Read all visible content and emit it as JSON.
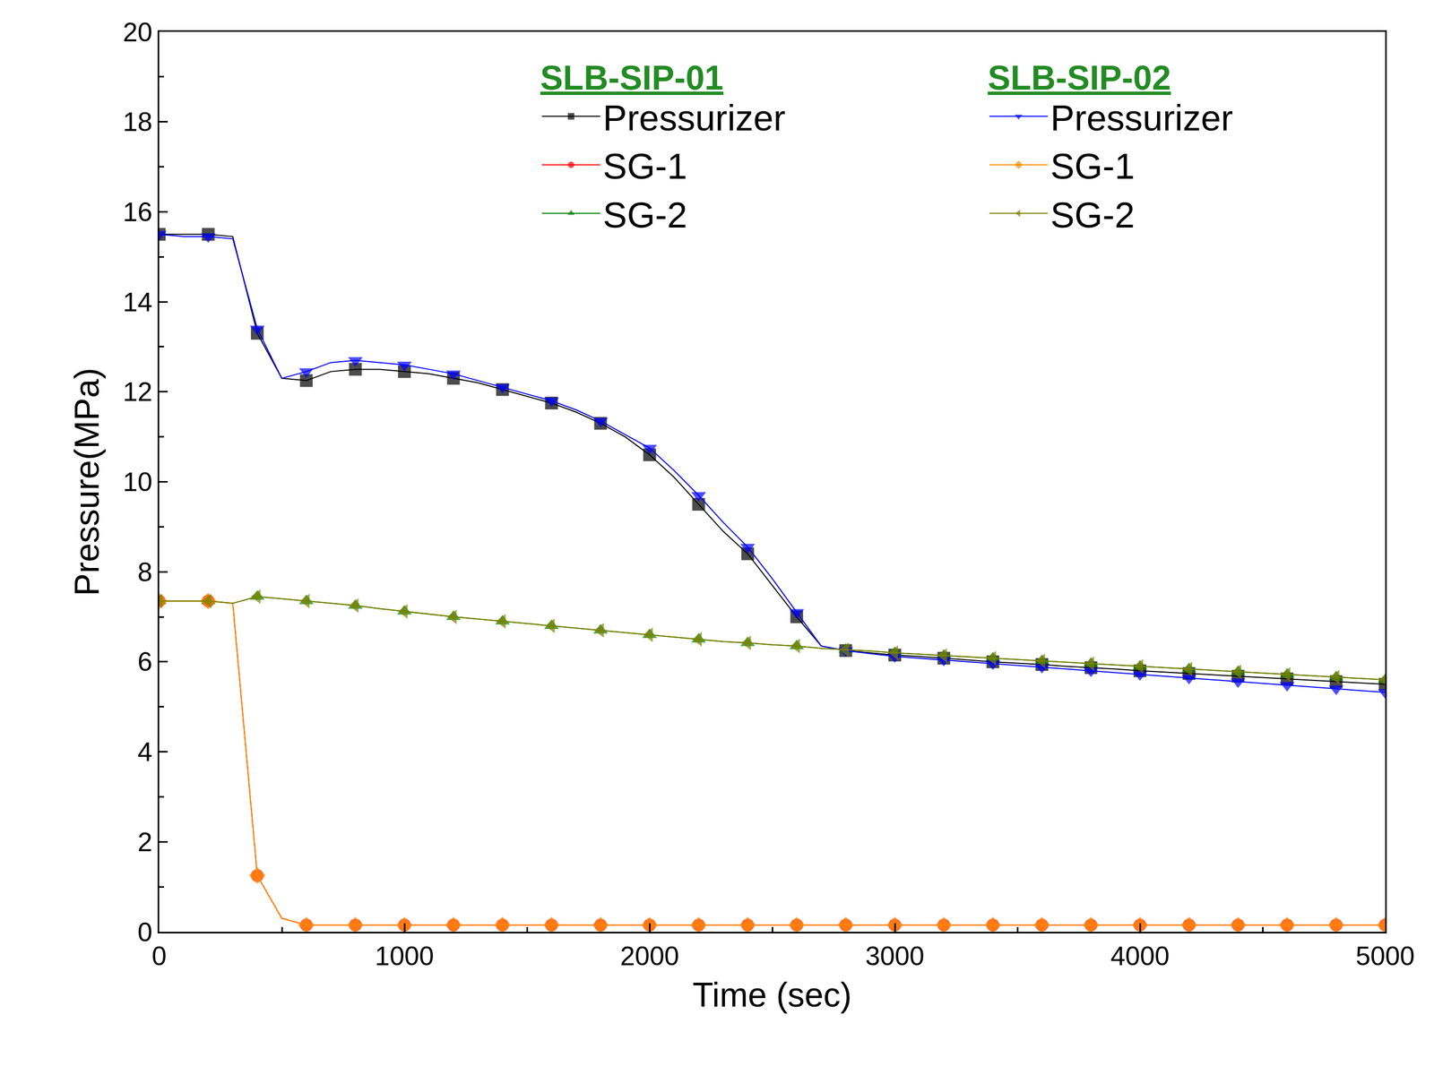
{
  "chart_data": {
    "type": "line",
    "x_label": "Time (sec)",
    "y_label": "Pressure(MPa)",
    "x": [
      0,
      100,
      200,
      300,
      400,
      500,
      600,
      700,
      800,
      900,
      1000,
      1100,
      1200,
      1300,
      1400,
      1500,
      1600,
      1700,
      1800,
      1900,
      2000,
      2100,
      2200,
      2300,
      2400,
      2500,
      2600,
      2700,
      2800,
      2900,
      3000,
      3100,
      3200,
      3300,
      3400,
      3500,
      3600,
      3700,
      3800,
      3900,
      4000,
      4100,
      4200,
      4300,
      4400,
      4500,
      4600,
      4700,
      4800,
      4900,
      5000
    ],
    "xlim": [
      0,
      5000
    ],
    "xticks": [
      0,
      1000,
      2000,
      3000,
      4000,
      5000
    ],
    "ylim": [
      0,
      20
    ],
    "yticks": [
      0,
      2,
      4,
      6,
      8,
      10,
      12,
      14,
      16,
      18,
      20
    ],
    "grid": false,
    "groups": [
      {
        "name": "SLB-SIP-01",
        "series": [
          {
            "name": "Pressurizer",
            "color": "#000000",
            "marker": "square",
            "values": [
              15.5,
              15.5,
              15.5,
              15.45,
              13.3,
              12.3,
              12.25,
              12.45,
              12.5,
              12.5,
              12.45,
              12.4,
              12.3,
              12.2,
              12.05,
              11.9,
              11.75,
              11.55,
              11.3,
              11.0,
              10.6,
              10.1,
              9.5,
              8.9,
              8.4,
              7.7,
              7.0,
              6.35,
              6.25,
              6.2,
              6.15,
              6.12,
              6.08,
              6.04,
              6.0,
              5.97,
              5.94,
              5.9,
              5.87,
              5.84,
              5.8,
              5.77,
              5.74,
              5.71,
              5.68,
              5.65,
              5.62,
              5.59,
              5.56,
              5.53,
              5.5
            ]
          },
          {
            "name": "SG-1",
            "color": "#ff0000",
            "marker": "circle",
            "values": [
              7.35,
              7.35,
              7.35,
              7.3,
              1.25,
              0.3,
              0.15,
              0.15,
              0.15,
              0.15,
              0.15,
              0.15,
              0.15,
              0.15,
              0.15,
              0.15,
              0.15,
              0.15,
              0.15,
              0.15,
              0.15,
              0.15,
              0.15,
              0.15,
              0.15,
              0.15,
              0.15,
              0.15,
              0.15,
              0.15,
              0.15,
              0.15,
              0.15,
              0.15,
              0.15,
              0.15,
              0.15,
              0.15,
              0.15,
              0.15,
              0.15,
              0.15,
              0.15,
              0.15,
              0.15,
              0.15,
              0.15,
              0.15,
              0.15,
              0.15,
              0.15
            ]
          },
          {
            "name": "SG-2",
            "color": "#008000",
            "marker": "triangle-up",
            "values": [
              7.35,
              7.35,
              7.35,
              7.3,
              7.45,
              7.4,
              7.35,
              7.3,
              7.25,
              7.18,
              7.12,
              7.06,
              7.0,
              6.95,
              6.9,
              6.85,
              6.8,
              6.75,
              6.7,
              6.65,
              6.6,
              6.55,
              6.5,
              6.45,
              6.42,
              6.38,
              6.35,
              6.3,
              6.27,
              6.24,
              6.2,
              6.17,
              6.14,
              6.11,
              6.08,
              6.05,
              6.02,
              5.99,
              5.96,
              5.93,
              5.9,
              5.87,
              5.84,
              5.81,
              5.78,
              5.75,
              5.72,
              5.69,
              5.66,
              5.63,
              5.6
            ]
          }
        ]
      },
      {
        "name": "SLB-SIP-02",
        "series": [
          {
            "name": "Pressurizer",
            "color": "#0000ff",
            "marker": "triangle-down",
            "values": [
              15.5,
              15.45,
              15.45,
              15.4,
              13.4,
              12.3,
              12.45,
              12.65,
              12.7,
              12.65,
              12.6,
              12.5,
              12.4,
              12.25,
              12.1,
              11.95,
              11.8,
              11.6,
              11.35,
              11.05,
              10.75,
              10.25,
              9.7,
              9.1,
              8.55,
              7.85,
              7.1,
              6.35,
              6.25,
              6.18,
              6.12,
              6.08,
              6.04,
              6.0,
              5.96,
              5.92,
              5.88,
              5.84,
              5.8,
              5.76,
              5.72,
              5.68,
              5.64,
              5.6,
              5.56,
              5.52,
              5.48,
              5.44,
              5.4,
              5.36,
              5.32
            ]
          },
          {
            "name": "SG-1",
            "color": "#ff8c00",
            "marker": "diamond",
            "values": [
              7.35,
              7.35,
              7.35,
              7.3,
              1.25,
              0.3,
              0.15,
              0.15,
              0.15,
              0.15,
              0.15,
              0.15,
              0.15,
              0.15,
              0.15,
              0.15,
              0.15,
              0.15,
              0.15,
              0.15,
              0.15,
              0.15,
              0.15,
              0.15,
              0.15,
              0.15,
              0.15,
              0.15,
              0.15,
              0.15,
              0.15,
              0.15,
              0.15,
              0.15,
              0.15,
              0.15,
              0.15,
              0.15,
              0.15,
              0.15,
              0.15,
              0.15,
              0.15,
              0.15,
              0.15,
              0.15,
              0.15,
              0.15,
              0.15,
              0.15,
              0.15
            ]
          },
          {
            "name": "SG-2",
            "color": "#808000",
            "marker": "triangle-left",
            "values": [
              7.35,
              7.35,
              7.35,
              7.3,
              7.45,
              7.4,
              7.35,
              7.3,
              7.25,
              7.18,
              7.12,
              7.06,
              7.0,
              6.95,
              6.9,
              6.85,
              6.8,
              6.75,
              6.7,
              6.65,
              6.6,
              6.55,
              6.5,
              6.45,
              6.42,
              6.38,
              6.35,
              6.3,
              6.27,
              6.24,
              6.2,
              6.17,
              6.14,
              6.11,
              6.08,
              6.05,
              6.02,
              5.99,
              5.96,
              5.93,
              5.9,
              5.87,
              5.84,
              5.81,
              5.78,
              5.75,
              5.72,
              5.69,
              5.66,
              5.63,
              5.6
            ]
          }
        ]
      }
    ]
  }
}
